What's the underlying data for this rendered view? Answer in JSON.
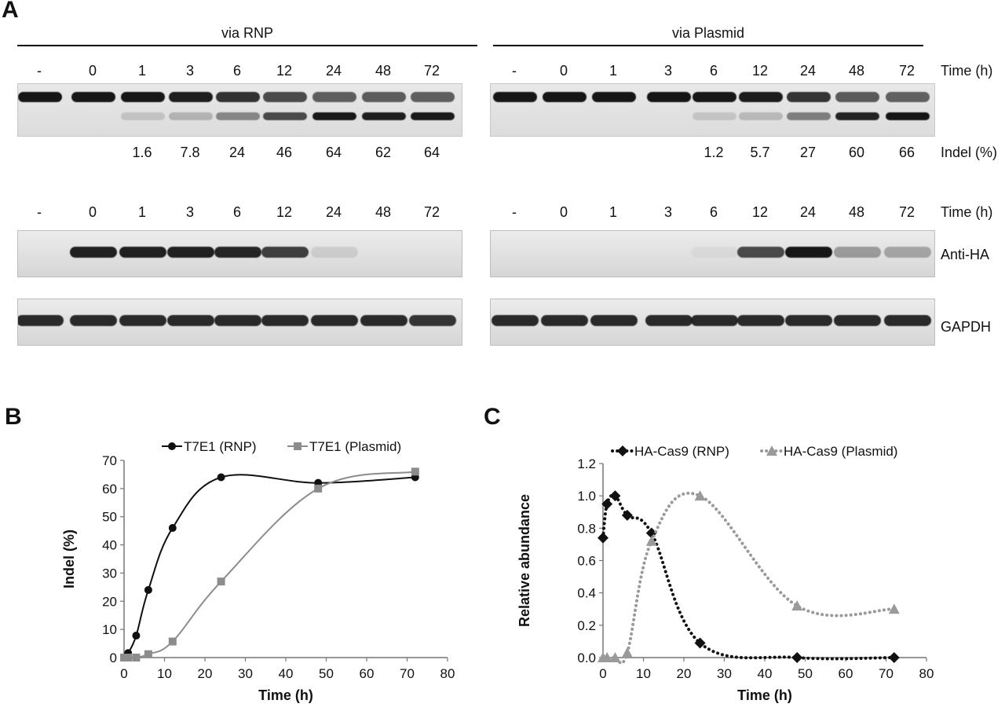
{
  "panel_a": {
    "letter": "A",
    "rnp_title": "via RNP",
    "plasmid_title": "via Plasmid",
    "time_label": "Time (h)",
    "indel_label": "Indel (%)",
    "antiha_label": "Anti-HA",
    "gapdh_label": "GAPDH",
    "lanes": [
      "-",
      "0",
      "1",
      "3",
      "6",
      "12",
      "24",
      "48",
      "72"
    ],
    "rnp_indel": [
      "",
      "",
      "1.6",
      "7.8",
      "24",
      "46",
      "64",
      "62",
      "64"
    ],
    "plasmid_indel": [
      "",
      "",
      "",
      "",
      "1.2",
      "5.7",
      "27",
      "60",
      "66"
    ],
    "rnp_cleaved_fraction": [
      0,
      0,
      0.016,
      0.078,
      0.24,
      0.46,
      0.64,
      0.62,
      0.64
    ],
    "plasmid_cleaved_fraction": [
      0,
      0,
      0,
      0,
      0.012,
      0.057,
      0.27,
      0.6,
      0.66
    ],
    "rnp_antiha_intensity": [
      0,
      0.95,
      0.95,
      0.95,
      0.92,
      0.8,
      0.1,
      0,
      0
    ],
    "plasmid_antiha_intensity": [
      0,
      0,
      0,
      0,
      0.04,
      0.75,
      1.0,
      0.35,
      0.3
    ]
  },
  "chart_data": [
    {
      "panel": "B",
      "type": "line",
      "xlabel": "Time (h)",
      "ylabel": "Indel (%)",
      "xlim": [
        0,
        80
      ],
      "ylim": [
        0,
        70
      ],
      "xticks": [
        "0",
        "10",
        "20",
        "30",
        "40",
        "50",
        "60",
        "70",
        "80"
      ],
      "yticks": [
        "0",
        "10",
        "20",
        "30",
        "40",
        "50",
        "60",
        "70"
      ],
      "grid": false,
      "legend_position": "top",
      "series": [
        {
          "name": "T7E1 (RNP)",
          "color": "#111111",
          "marker": "circle",
          "x": [
            0,
            1,
            3,
            6,
            12,
            24,
            48,
            72
          ],
          "y": [
            0,
            1.6,
            7.8,
            24,
            46,
            64,
            62,
            64
          ]
        },
        {
          "name": "T7E1 (Plasmid)",
          "color": "#8c8c8c",
          "marker": "square",
          "x": [
            0,
            1,
            3,
            6,
            12,
            24,
            48,
            72
          ],
          "y": [
            0,
            0,
            0,
            1.2,
            5.7,
            27,
            60,
            66
          ]
        }
      ]
    },
    {
      "panel": "C",
      "type": "line",
      "xlabel": "Time (h)",
      "ylabel": "Relative abundance",
      "xlim": [
        0,
        80
      ],
      "ylim": [
        0,
        1.2
      ],
      "xticks": [
        "0",
        "10",
        "20",
        "30",
        "40",
        "50",
        "60",
        "70",
        "80"
      ],
      "yticks": [
        "0.0",
        "0.2",
        "0.4",
        "0.6",
        "0.8",
        "1.0",
        "1.2"
      ],
      "grid": false,
      "legend_position": "top",
      "series": [
        {
          "name": "HA-Cas9 (RNP)",
          "color": "#111111",
          "marker": "diamond",
          "dotted": true,
          "x": [
            0,
            1,
            3,
            6,
            12,
            24,
            48,
            72
          ],
          "y": [
            0.74,
            0.95,
            1.0,
            0.88,
            0.77,
            0.09,
            0.0,
            0.0
          ]
        },
        {
          "name": "HA-Cas9 (Plasmid)",
          "color": "#9a9a9a",
          "marker": "triangle",
          "dotted": true,
          "x": [
            0,
            1,
            3,
            6,
            12,
            24,
            48,
            72
          ],
          "y": [
            0.0,
            0.0,
            0.0,
            0.03,
            0.72,
            1.0,
            0.32,
            0.3
          ]
        }
      ]
    }
  ]
}
